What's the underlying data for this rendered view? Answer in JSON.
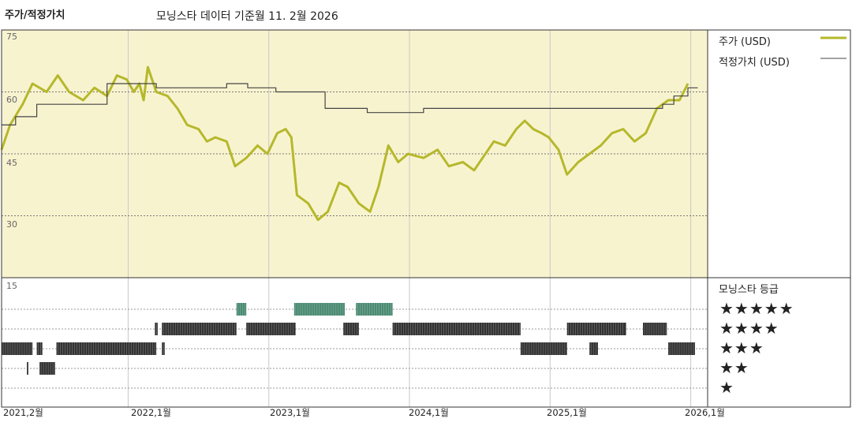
{
  "header": {
    "chart_label": "주가/적정가치",
    "subtitle": "모닝스타 데이터 기준월 11. 2월 2026"
  },
  "legend": {
    "price": "주가 (USD)",
    "fair": "적정가치 (USD)",
    "rating_title": "모닝스타 등급",
    "price_color": "#b5b82b",
    "fair_color": "#444444"
  },
  "rating_labels": [
    "★★★★★",
    "★★★★",
    "★★★",
    "★★",
    "★"
  ],
  "colors": {
    "top_bg": "#f8f3cf",
    "teal": "#4a8a72",
    "dark": "#333333",
    "price": "#b5b82b",
    "fair": "#444444"
  },
  "chart_data": [
    {
      "type": "line",
      "title": "주가/적정가치",
      "xlabel": "",
      "ylabel": "",
      "x_ticks": [
        "2021,2월",
        "2022,1월",
        "2023,1월",
        "2024,1월",
        "2025,1월",
        "2026,1월"
      ],
      "y_ticks": [
        75,
        60,
        45,
        30
      ],
      "ylim": [
        15,
        75
      ],
      "xlim": [
        2021.1,
        2026.12
      ],
      "series": [
        {
          "name": "주가 (USD)",
          "color": "#b5b82b",
          "points": [
            [
              2021.1,
              46
            ],
            [
              2021.16,
              52
            ],
            [
              2021.25,
              57
            ],
            [
              2021.32,
              62
            ],
            [
              2021.42,
              60
            ],
            [
              2021.5,
              64
            ],
            [
              2021.58,
              60
            ],
            [
              2021.68,
              58
            ],
            [
              2021.76,
              61
            ],
            [
              2021.85,
              59
            ],
            [
              2021.92,
              64
            ],
            [
              2021.99,
              63
            ],
            [
              2022.04,
              60
            ],
            [
              2022.08,
              62
            ],
            [
              2022.11,
              58
            ],
            [
              2022.14,
              66
            ],
            [
              2022.2,
              60
            ],
            [
              2022.28,
              59
            ],
            [
              2022.35,
              56
            ],
            [
              2022.42,
              52
            ],
            [
              2022.5,
              51
            ],
            [
              2022.56,
              48
            ],
            [
              2022.62,
              49
            ],
            [
              2022.7,
              48
            ],
            [
              2022.76,
              42
            ],
            [
              2022.84,
              44
            ],
            [
              2022.92,
              47
            ],
            [
              2022.99,
              45
            ],
            [
              2023.06,
              50
            ],
            [
              2023.12,
              51
            ],
            [
              2023.16,
              49
            ],
            [
              2023.2,
              35
            ],
            [
              2023.28,
              33
            ],
            [
              2023.35,
              29
            ],
            [
              2023.42,
              31
            ],
            [
              2023.5,
              38
            ],
            [
              2023.56,
              37
            ],
            [
              2023.64,
              33
            ],
            [
              2023.72,
              31
            ],
            [
              2023.78,
              37
            ],
            [
              2023.85,
              47
            ],
            [
              2023.92,
              43
            ],
            [
              2023.99,
              45
            ],
            [
              2024.1,
              44
            ],
            [
              2024.2,
              46
            ],
            [
              2024.28,
              42
            ],
            [
              2024.38,
              43
            ],
            [
              2024.46,
              41
            ],
            [
              2024.52,
              44
            ],
            [
              2024.6,
              48
            ],
            [
              2024.68,
              47
            ],
            [
              2024.76,
              51
            ],
            [
              2024.82,
              53
            ],
            [
              2024.88,
              51
            ],
            [
              2024.94,
              50
            ],
            [
              2024.99,
              49
            ],
            [
              2025.06,
              46
            ],
            [
              2025.12,
              40
            ],
            [
              2025.2,
              43
            ],
            [
              2025.28,
              45
            ],
            [
              2025.36,
              47
            ],
            [
              2025.44,
              50
            ],
            [
              2025.52,
              51
            ],
            [
              2025.6,
              48
            ],
            [
              2025.68,
              50
            ],
            [
              2025.76,
              56
            ],
            [
              2025.84,
              58
            ],
            [
              2025.92,
              58
            ],
            [
              2025.98,
              62
            ]
          ]
        },
        {
          "name": "적정가치 (USD)",
          "color": "#444444",
          "points": [
            [
              2021.1,
              52
            ],
            [
              2021.2,
              52
            ],
            [
              2021.2,
              54
            ],
            [
              2021.35,
              54
            ],
            [
              2021.35,
              57
            ],
            [
              2021.85,
              57
            ],
            [
              2021.85,
              62
            ],
            [
              2022.2,
              62
            ],
            [
              2022.2,
              61
            ],
            [
              2022.7,
              61
            ],
            [
              2022.7,
              62
            ],
            [
              2022.85,
              62
            ],
            [
              2022.85,
              61
            ],
            [
              2023.05,
              61
            ],
            [
              2023.05,
              60
            ],
            [
              2023.4,
              60
            ],
            [
              2023.4,
              56
            ],
            [
              2023.7,
              56
            ],
            [
              2023.7,
              55
            ],
            [
              2024.1,
              55
            ],
            [
              2024.1,
              56
            ],
            [
              2025.8,
              56
            ],
            [
              2025.8,
              57
            ],
            [
              2025.88,
              57
            ],
            [
              2025.88,
              59
            ],
            [
              2025.98,
              59
            ],
            [
              2025.98,
              61
            ],
            [
              2026.05,
              61
            ]
          ]
        }
      ]
    },
    {
      "type": "heatmap",
      "title": "모닝스타 등급",
      "rows": [
        "★★★★★",
        "★★★★",
        "★★★",
        "★★",
        "★"
      ],
      "segments": [
        {
          "row": 0,
          "start": 2022.77,
          "end": 2022.84
        },
        {
          "row": 0,
          "start": 2023.18,
          "end": 2023.54
        },
        {
          "row": 0,
          "start": 2023.62,
          "end": 2023.88
        },
        {
          "row": 1,
          "start": 2022.19,
          "end": 2022.21
        },
        {
          "row": 1,
          "start": 2022.24,
          "end": 2022.77
        },
        {
          "row": 1,
          "start": 2022.84,
          "end": 2023.19
        },
        {
          "row": 1,
          "start": 2023.53,
          "end": 2023.64
        },
        {
          "row": 1,
          "start": 2023.88,
          "end": 2024.79
        },
        {
          "row": 1,
          "start": 2025.12,
          "end": 2025.54
        },
        {
          "row": 1,
          "start": 2025.66,
          "end": 2025.83
        },
        {
          "row": 2,
          "start": 2021.1,
          "end": 2021.32
        },
        {
          "row": 2,
          "start": 2021.35,
          "end": 2021.39
        },
        {
          "row": 2,
          "start": 2021.49,
          "end": 2022.2
        },
        {
          "row": 2,
          "start": 2022.24,
          "end": 2022.26
        },
        {
          "row": 2,
          "start": 2024.79,
          "end": 2025.12
        },
        {
          "row": 2,
          "start": 2025.28,
          "end": 2025.34
        },
        {
          "row": 2,
          "start": 2025.84,
          "end": 2026.03
        },
        {
          "row": 3,
          "start": 2021.28,
          "end": 2021.29
        },
        {
          "row": 3,
          "start": 2021.37,
          "end": 2021.48
        }
      ]
    }
  ]
}
